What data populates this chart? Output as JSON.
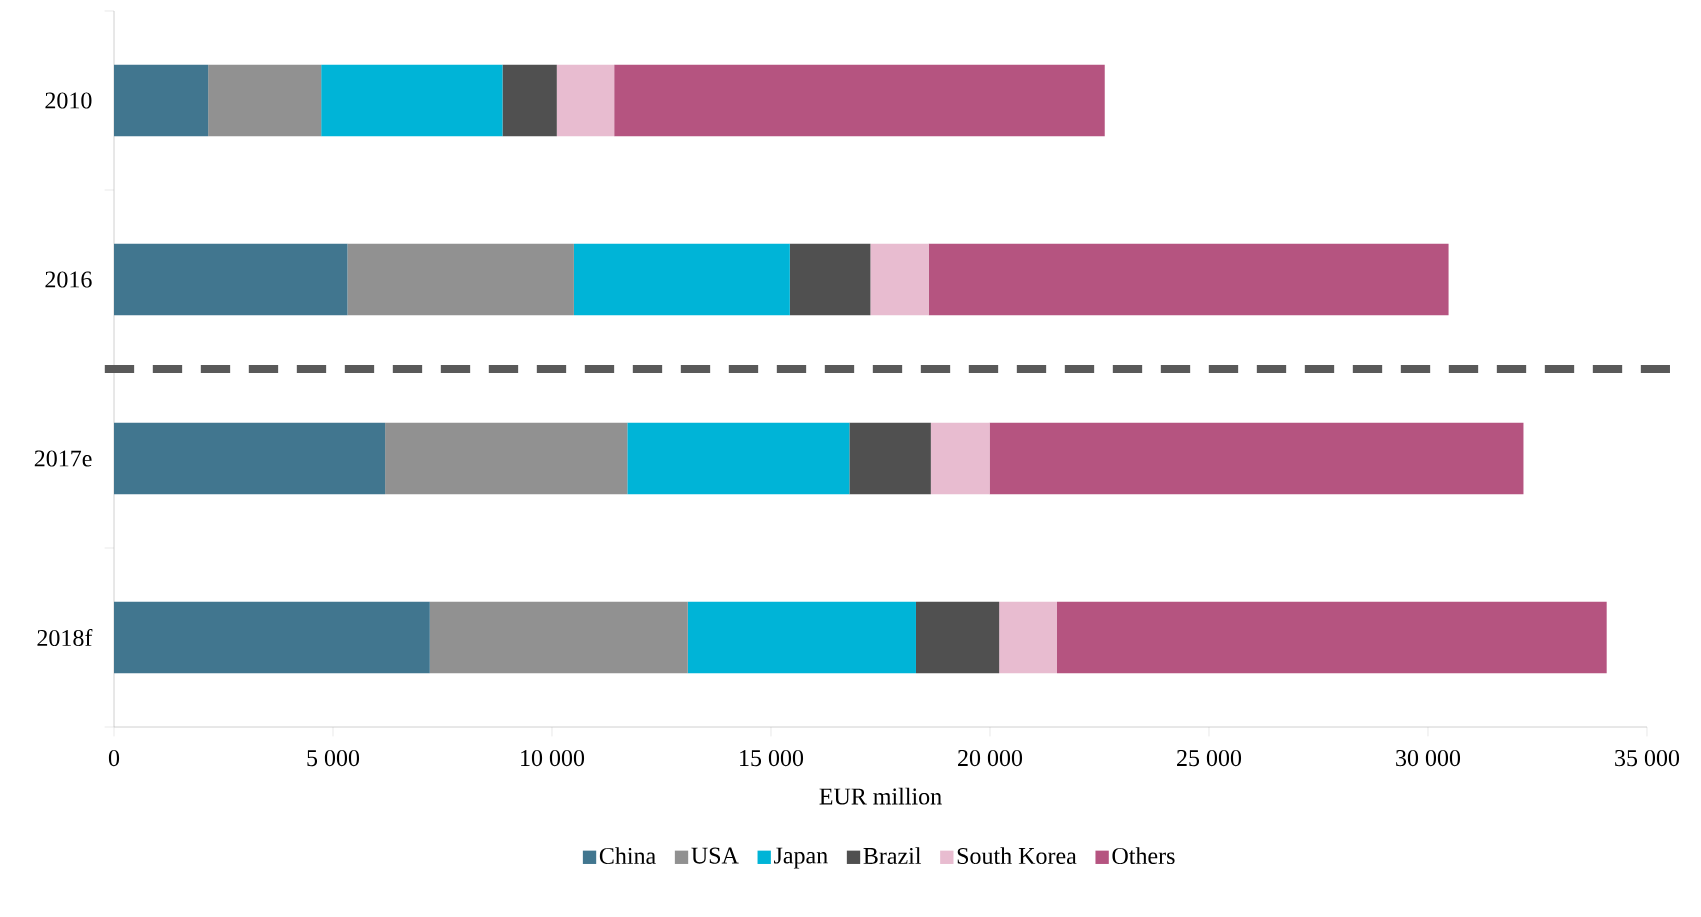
{
  "chart_data": {
    "type": "bar",
    "orientation": "horizontal",
    "stacked": true,
    "categories": [
      "2010",
      "2016",
      "2017e",
      "2018f"
    ],
    "series": [
      {
        "name": "China",
        "color": "#41768f",
        "values": [
          2150,
          5330,
          6190,
          7210
        ]
      },
      {
        "name": "USA",
        "color": "#919191",
        "values": [
          2580,
          5170,
          5530,
          5890
        ]
      },
      {
        "name": "Japan",
        "color": "#00b4d7",
        "values": [
          4140,
          4930,
          5070,
          5210
        ]
      },
      {
        "name": "Brazil",
        "color": "#505050",
        "values": [
          1240,
          1840,
          1860,
          1900
        ]
      },
      {
        "name": "South Korea",
        "color": "#e8bcd0",
        "values": [
          1310,
          1330,
          1340,
          1320
        ]
      },
      {
        "name": "Others",
        "color": "#b55480",
        "values": [
          11200,
          11870,
          12190,
          12550
        ]
      }
    ],
    "xlim": [
      0,
      35000
    ],
    "xticks": [
      0,
      {
        "value": 5000,
        "label": "5 000"
      },
      {
        "value": 10000,
        "label": "10 000"
      },
      {
        "value": 15000,
        "label": "15 000"
      },
      {
        "value": 20000,
        "label": "20 000"
      },
      {
        "value": 25000,
        "label": "25 000"
      },
      {
        "value": 30000,
        "label": "30 000"
      },
      {
        "value": 35000,
        "label": "35 000"
      }
    ],
    "xlabel": "EUR  million",
    "grid": false,
    "legend": "bottom"
  }
}
